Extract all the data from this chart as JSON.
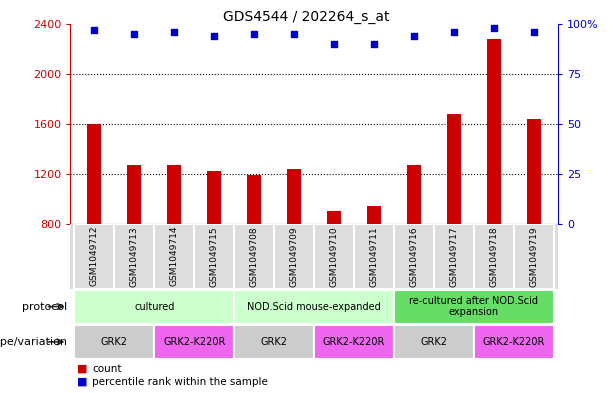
{
  "title": "GDS4544 / 202264_s_at",
  "samples": [
    "GSM1049712",
    "GSM1049713",
    "GSM1049714",
    "GSM1049715",
    "GSM1049708",
    "GSM1049709",
    "GSM1049710",
    "GSM1049711",
    "GSM1049716",
    "GSM1049717",
    "GSM1049718",
    "GSM1049719"
  ],
  "counts": [
    1600,
    1270,
    1270,
    1220,
    1195,
    1240,
    900,
    940,
    1270,
    1680,
    2280,
    1640
  ],
  "percentile_ranks": [
    97,
    95,
    96,
    94,
    95,
    95,
    90,
    90,
    94,
    96,
    98,
    96
  ],
  "ylim_left": [
    800,
    2400
  ],
  "ylim_right": [
    0,
    100
  ],
  "yticks_left": [
    800,
    1200,
    1600,
    2000,
    2400
  ],
  "yticks_right": [
    0,
    25,
    50,
    75,
    100
  ],
  "bar_color": "#cc0000",
  "dot_color": "#0000cc",
  "protocol_groups": [
    {
      "label": "cultured",
      "start": 0,
      "end": 3,
      "color": "#ccffcc"
    },
    {
      "label": "NOD.Scid mouse-expanded",
      "start": 4,
      "end": 7,
      "color": "#ccffcc"
    },
    {
      "label": "re-cultured after NOD.Scid\nexpansion",
      "start": 8,
      "end": 11,
      "color": "#66dd66"
    }
  ],
  "genotype_groups": [
    {
      "label": "GRK2",
      "start": 0,
      "end": 1,
      "color": "#cccccc"
    },
    {
      "label": "GRK2-K220R",
      "start": 2,
      "end": 3,
      "color": "#ee66ee"
    },
    {
      "label": "GRK2",
      "start": 4,
      "end": 5,
      "color": "#cccccc"
    },
    {
      "label": "GRK2-K220R",
      "start": 6,
      "end": 7,
      "color": "#ee66ee"
    },
    {
      "label": "GRK2",
      "start": 8,
      "end": 9,
      "color": "#cccccc"
    },
    {
      "label": "GRK2-K220R",
      "start": 10,
      "end": 11,
      "color": "#ee66ee"
    }
  ],
  "legend_count_label": "count",
  "legend_percentile_label": "percentile rank within the sample",
  "protocol_row_label": "protocol",
  "genotype_row_label": "genotype/variation",
  "background_color": "#ffffff",
  "left_axis_color": "#cc0000",
  "right_axis_color": "#0000cc",
  "sample_bg_color": "#dddddd",
  "arrow_color": "#333333"
}
